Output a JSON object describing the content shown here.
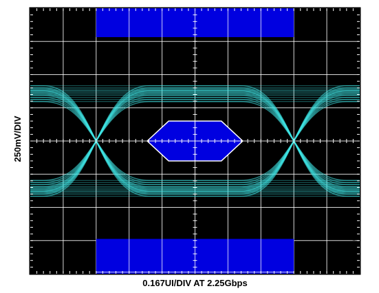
{
  "chart_data": {
    "type": "eye-diagram",
    "xlabel": "0.167UI/DIV AT 2.25Gbps",
    "ylabel": "250mV/DIV",
    "figure_id": "07905-025",
    "grid": true,
    "divisions": {
      "x": 10,
      "y": 8
    },
    "colors": {
      "background": "#000000",
      "grid": "#ffffff",
      "trace": "#40e8e8",
      "mask": "#0000e0",
      "mask_outline": "#ffffff"
    }
  }
}
